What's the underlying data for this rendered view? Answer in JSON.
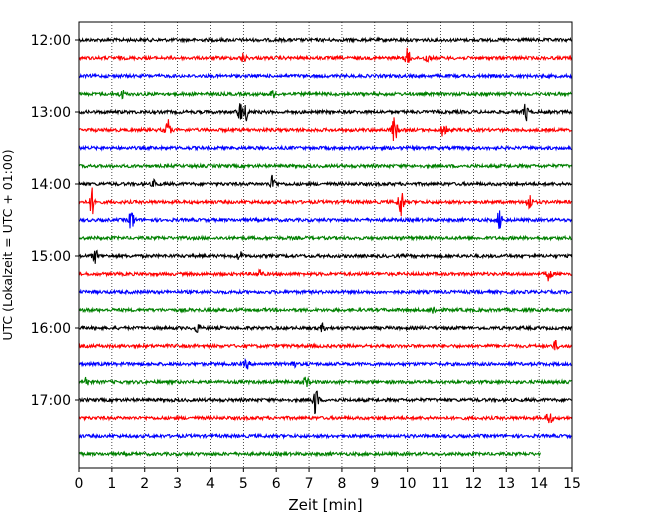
{
  "chart_data": {
    "type": "line",
    "title": "",
    "xlabel": "Zeit  [min]",
    "ylabel": "UTC (Lokalzeit = UTC + 01:00)",
    "xlim": [
      0,
      15
    ],
    "x_ticks": [
      "0",
      "1",
      "2",
      "3",
      "4",
      "5",
      "6",
      "7",
      "8",
      "9",
      "10",
      "11",
      "12",
      "13",
      "14",
      "15"
    ],
    "y_tick_labels": [
      {
        "label": "12:00",
        "row": 0
      },
      {
        "label": "13:00",
        "row": 4
      },
      {
        "label": "14:00",
        "row": 8
      },
      {
        "label": "15:00",
        "row": 12
      },
      {
        "label": "16:00",
        "row": 16
      },
      {
        "label": "17:00",
        "row": 20
      }
    ],
    "grid": "vertical dotted lines at each minute",
    "row_interval_minutes": 15,
    "row_colors": [
      "#000000",
      "#ff0000",
      "#0000ff",
      "#008000"
    ],
    "rows": [
      {
        "start": "12:00",
        "end_min": 15,
        "events": []
      },
      {
        "start": "12:15",
        "end_min": 15,
        "events": [
          {
            "t": 5.0,
            "amp": 0.4
          },
          {
            "t": 10.0,
            "amp": 0.8
          },
          {
            "t": 10.6,
            "amp": 0.4
          }
        ]
      },
      {
        "start": "12:30",
        "end_min": 15,
        "events": []
      },
      {
        "start": "12:45",
        "end_min": 15,
        "events": [
          {
            "t": 1.3,
            "amp": 0.4
          },
          {
            "t": 5.9,
            "amp": 0.3
          }
        ]
      },
      {
        "start": "13:00",
        "end_min": 15,
        "events": [
          {
            "t": 4.9,
            "amp": 0.9
          },
          {
            "t": 5.1,
            "amp": 0.7
          },
          {
            "t": 13.6,
            "amp": 0.8
          }
        ]
      },
      {
        "start": "13:15",
        "end_min": 15,
        "events": [
          {
            "t": 2.7,
            "amp": 1.0
          },
          {
            "t": 9.6,
            "amp": 1.3
          },
          {
            "t": 11.1,
            "amp": 0.9
          }
        ]
      },
      {
        "start": "13:30",
        "end_min": 15,
        "events": []
      },
      {
        "start": "13:45",
        "end_min": 15,
        "events": []
      },
      {
        "start": "14:00",
        "end_min": 15,
        "events": [
          {
            "t": 5.9,
            "amp": 0.8
          },
          {
            "t": 2.3,
            "amp": 0.3
          }
        ]
      },
      {
        "start": "14:15",
        "end_min": 15,
        "events": [
          {
            "t": 0.4,
            "amp": 1.2
          },
          {
            "t": 9.8,
            "amp": 1.5
          },
          {
            "t": 13.7,
            "amp": 0.8
          }
        ]
      },
      {
        "start": "14:30",
        "end_min": 15,
        "events": [
          {
            "t": 1.6,
            "amp": 1.0
          },
          {
            "t": 12.8,
            "amp": 0.9
          }
        ]
      },
      {
        "start": "14:45",
        "end_min": 15,
        "events": []
      },
      {
        "start": "15:00",
        "end_min": 15,
        "events": [
          {
            "t": 0.5,
            "amp": 0.6
          },
          {
            "t": 4.9,
            "amp": 0.4
          }
        ]
      },
      {
        "start": "15:15",
        "end_min": 15,
        "events": [
          {
            "t": 5.5,
            "amp": 0.4
          },
          {
            "t": 14.3,
            "amp": 0.6
          }
        ]
      },
      {
        "start": "15:30",
        "end_min": 15,
        "events": []
      },
      {
        "start": "15:45",
        "end_min": 15,
        "events": [
          {
            "t": 10.8,
            "amp": 0.4
          }
        ]
      },
      {
        "start": "16:00",
        "end_min": 15,
        "events": [
          {
            "t": 3.6,
            "amp": 0.4
          },
          {
            "t": 7.4,
            "amp": 0.3
          }
        ]
      },
      {
        "start": "16:15",
        "end_min": 15,
        "events": [
          {
            "t": 14.5,
            "amp": 0.4
          }
        ]
      },
      {
        "start": "16:30",
        "end_min": 15,
        "events": [
          {
            "t": 5.1,
            "amp": 0.4
          },
          {
            "t": 6.5,
            "amp": 0.4
          }
        ]
      },
      {
        "start": "16:45",
        "end_min": 15,
        "events": [
          {
            "t": 0.2,
            "amp": 0.5
          },
          {
            "t": 6.9,
            "amp": 0.5
          }
        ]
      },
      {
        "start": "17:00",
        "end_min": 15,
        "events": [
          {
            "t": 7.2,
            "amp": 1.4
          }
        ]
      },
      {
        "start": "17:15",
        "end_min": 15,
        "events": [
          {
            "t": 14.3,
            "amp": 0.7
          }
        ]
      },
      {
        "start": "17:30",
        "end_min": 15,
        "events": []
      },
      {
        "start": "17:45",
        "end_min": 14.05,
        "events": []
      }
    ]
  }
}
